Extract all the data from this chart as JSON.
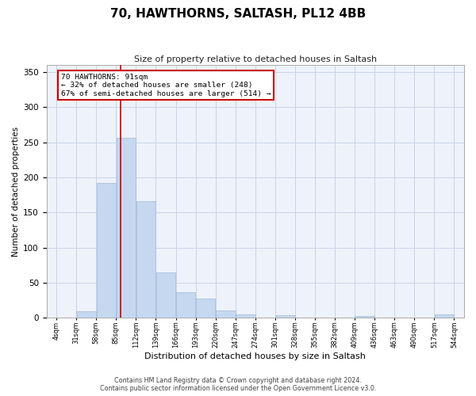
{
  "title": "70, HAWTHORNS, SALTASH, PL12 4BB",
  "subtitle": "Size of property relative to detached houses in Saltash",
  "xlabel": "Distribution of detached houses by size in Saltash",
  "ylabel": "Number of detached properties",
  "footer_line1": "Contains HM Land Registry data © Crown copyright and database right 2024.",
  "footer_line2": "Contains public sector information licensed under the Open Government Licence v3.0.",
  "bins": [
    4,
    31,
    58,
    85,
    112,
    139,
    166,
    193,
    220,
    247,
    274,
    301,
    328,
    355,
    382,
    409,
    436,
    463,
    490,
    517,
    544
  ],
  "bar_heights": [
    0,
    10,
    192,
    256,
    166,
    65,
    37,
    28,
    11,
    5,
    0,
    4,
    0,
    0,
    0,
    3,
    0,
    0,
    0,
    5
  ],
  "bar_color": "#c5d8f0",
  "bar_edge_color": "#a0b8d8",
  "grid_color": "#c8d4e8",
  "background_color": "#eef2fa",
  "property_size": 91,
  "red_line_color": "#cc0000",
  "annotation_text": "70 HAWTHORNS: 91sqm\n← 32% of detached houses are smaller (248)\n67% of semi-detached houses are larger (514) →",
  "annotation_box_color": "#ffffff",
  "annotation_border_color": "#cc0000",
  "ylim": [
    0,
    360
  ],
  "yticks": [
    0,
    50,
    100,
    150,
    200,
    250,
    300,
    350
  ]
}
